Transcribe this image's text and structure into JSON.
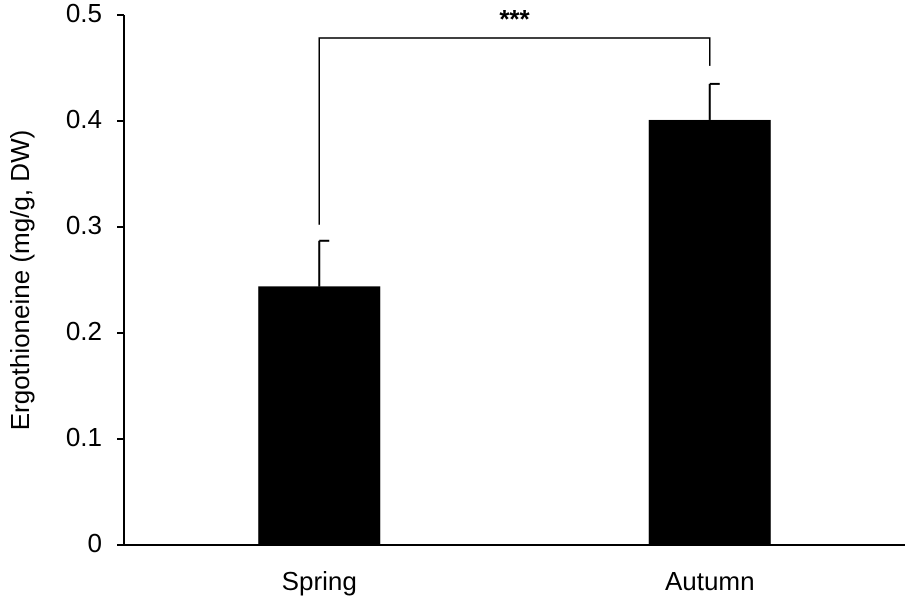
{
  "chart_data": {
    "type": "bar",
    "y_label": "Ergothioneine (mg/g, DW)",
    "categories": [
      "Spring",
      "Autumn"
    ],
    "values": [
      0.244,
      0.401
    ],
    "errors": [
      0.043,
      0.034
    ],
    "color": "#000000",
    "ylim": [
      0,
      0.5
    ],
    "yticks": [
      0,
      0.1,
      0.2,
      0.3,
      0.4,
      0.5
    ],
    "grid": false,
    "annotation": "***"
  }
}
